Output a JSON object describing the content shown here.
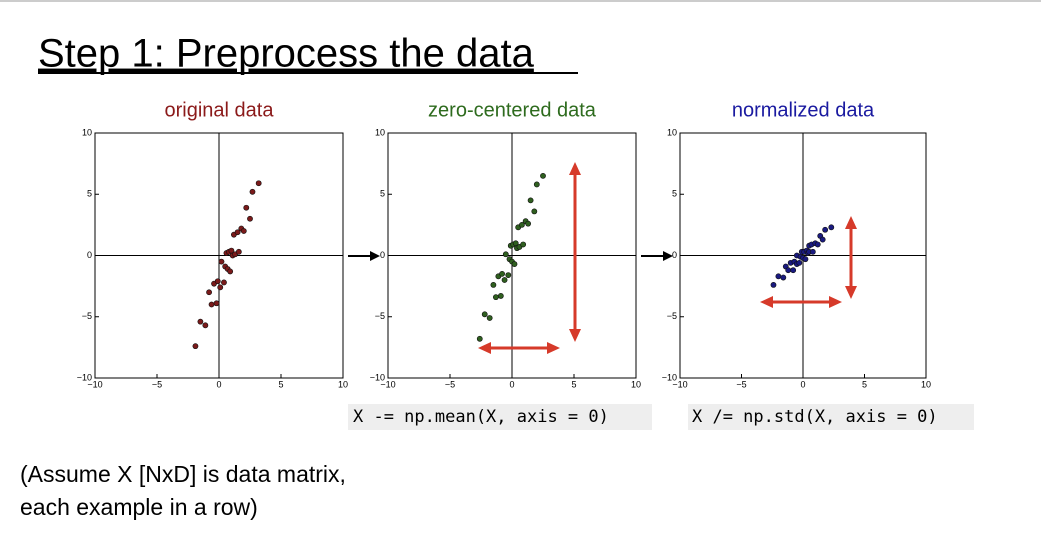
{
  "slide": {
    "title": "Step 1: Preprocess the data",
    "code": [
      "X -= np.mean(X, axis = 0)",
      "X /= np.std(X, axis = 0)"
    ],
    "note": [
      "(Assume X [NxD] is data matrix,",
      "each example in a row)"
    ]
  },
  "chart_data": [
    {
      "type": "scatter",
      "title": "original data",
      "title_color": "#8b1a1a",
      "color": "#7a1a1a",
      "x": [
        -1.5,
        -1.1,
        -0.8,
        -0.6,
        -0.4,
        -0.2,
        -0.1,
        0.1,
        0.2,
        0.4,
        0.5,
        0.6,
        0.7,
        0.8,
        0.9,
        1.0,
        1.1,
        1.2,
        1.3,
        1.5,
        1.6,
        1.8,
        2.0,
        2.2,
        2.7,
        3.2,
        -1.9,
        2.5
      ],
      "y": [
        -5.4,
        -5.7,
        -3.0,
        -4.0,
        -2.3,
        -3.9,
        -2.1,
        -2.6,
        -0.5,
        -2.2,
        -0.9,
        0.2,
        -1.1,
        0.3,
        -1.3,
        0.4,
        0.0,
        1.7,
        0.1,
        1.9,
        0.3,
        2.2,
        2.0,
        3.9,
        5.2,
        5.9,
        -7.4,
        3.0
      ],
      "xlim": [
        -10,
        10
      ],
      "ylim": [
        -10,
        10
      ],
      "xticks": [
        {
          "value": -10,
          "label": "−10"
        },
        {
          "value": -5,
          "label": "−5"
        },
        0,
        5,
        10
      ],
      "yticks": [
        {
          "value": -10,
          "label": "−10"
        },
        {
          "value": -5,
          "label": "−5"
        },
        0,
        5,
        10
      ]
    },
    {
      "type": "scatter",
      "title": "zero-centered data",
      "title_color": "#2e6b1e",
      "color": "#2f5f1f",
      "x": [
        -2.2,
        -1.8,
        -1.5,
        -1.3,
        -1.1,
        -0.9,
        -0.8,
        -0.6,
        -0.5,
        -0.3,
        -0.2,
        -0.1,
        0,
        0.1,
        0.2,
        0.3,
        0.4,
        0.5,
        0.6,
        0.8,
        0.9,
        1.1,
        1.3,
        1.5,
        2.0,
        2.5,
        -2.6,
        1.8
      ],
      "y": [
        -4.8,
        -5.1,
        -2.4,
        -3.4,
        -1.7,
        -3.3,
        -1.5,
        -2.0,
        0.1,
        -1.6,
        -0.3,
        0.8,
        -0.5,
        0.9,
        -0.7,
        1.0,
        0.6,
        2.3,
        0.7,
        2.5,
        0.9,
        2.8,
        2.6,
        4.5,
        5.8,
        6.5,
        -6.8,
        3.6
      ],
      "xlim": [
        -10,
        10
      ],
      "ylim": [
        -10,
        10
      ],
      "xticks": [
        {
          "value": -10,
          "label": "−10"
        },
        {
          "value": -5,
          "label": "−5"
        },
        0,
        5,
        10
      ],
      "yticks": [
        {
          "value": -10,
          "label": "−10"
        },
        {
          "value": -5,
          "label": "−5"
        },
        0,
        5,
        10
      ]
    },
    {
      "type": "scatter",
      "title": "normalized data",
      "title_color": "#1a1aa0",
      "color": "#1a1a80",
      "x": [
        -2.0,
        -1.6,
        -1.4,
        -1.2,
        -1.0,
        -0.8,
        -0.7,
        -0.5,
        -0.5,
        -0.3,
        -0.2,
        -0.1,
        0,
        0.1,
        0.2,
        0.3,
        0.4,
        0.5,
        0.5,
        0.7,
        0.8,
        1.0,
        1.2,
        1.4,
        1.8,
        2.3,
        -2.4,
        1.6
      ],
      "y": [
        -1.7,
        -1.8,
        -0.9,
        -1.2,
        -0.6,
        -1.2,
        -0.5,
        -0.7,
        0.0,
        -0.6,
        -0.1,
        0.3,
        -0.2,
        0.3,
        -0.3,
        0.4,
        0.2,
        0.8,
        0.3,
        0.9,
        0.3,
        1.0,
        0.9,
        1.6,
        2.1,
        2.3,
        -2.4,
        1.3
      ],
      "xlim": [
        -10,
        10
      ],
      "ylim": [
        -10,
        10
      ],
      "xticks": [
        {
          "value": -10,
          "label": "−10"
        },
        {
          "value": -5,
          "label": "−5"
        },
        0,
        5,
        10
      ],
      "yticks": [
        {
          "value": -10,
          "label": "−10"
        },
        {
          "value": -5,
          "label": "−5"
        },
        0,
        5,
        10
      ]
    }
  ]
}
